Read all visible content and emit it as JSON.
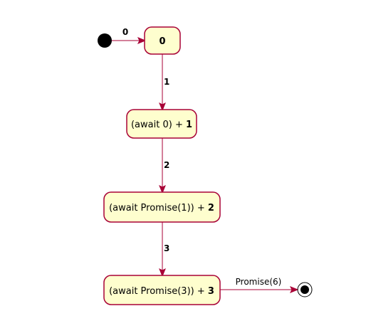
{
  "diagram": {
    "type": "state-diagram",
    "colors": {
      "state_fill": "#FEFECE",
      "border": "#A80036",
      "start_fill": "#000000",
      "text": "#000000",
      "background": "#FFFFFF"
    },
    "states": [
      {
        "id": "s0",
        "prefix": "",
        "value": "0"
      },
      {
        "id": "s1",
        "prefix": "(await 0) + ",
        "value": "1"
      },
      {
        "id": "s2",
        "prefix": "(await Promise(1)) + ",
        "value": "2"
      },
      {
        "id": "s3",
        "prefix": "(await Promise(3)) + ",
        "value": "3"
      }
    ],
    "transitions": [
      {
        "from": "start",
        "to": "s0",
        "label": "0"
      },
      {
        "from": "s0",
        "to": "s1",
        "label": "1"
      },
      {
        "from": "s1",
        "to": "s2",
        "label": "2"
      },
      {
        "from": "s2",
        "to": "s3",
        "label": "3"
      },
      {
        "from": "s3",
        "to": "end",
        "label": "Promise(6)"
      }
    ]
  }
}
